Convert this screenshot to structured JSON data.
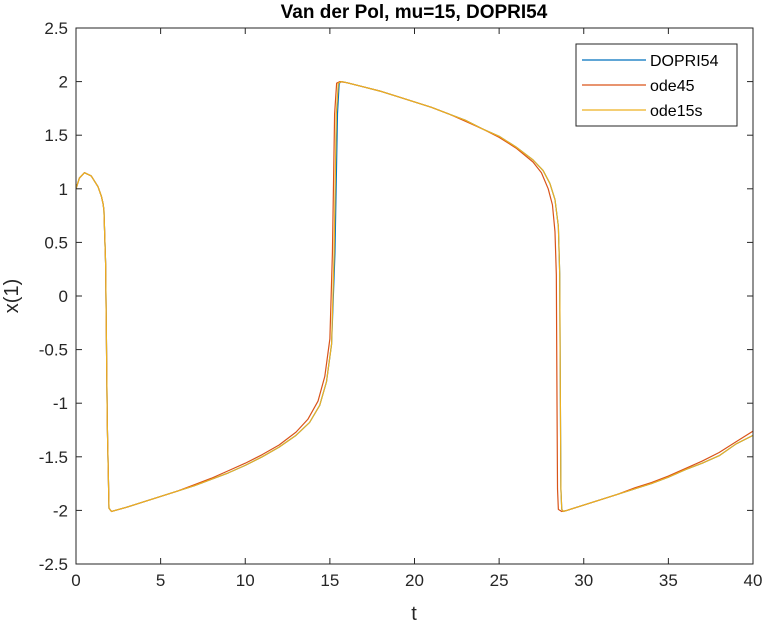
{
  "chart_data": {
    "type": "line",
    "title": "Van der Pol, mu=15, DOPRI54",
    "xlabel": "t",
    "ylabel": "x(1)",
    "xlim": [
      0,
      40
    ],
    "ylim": [
      -2.5,
      2.5
    ],
    "xticks": [
      0,
      5,
      10,
      15,
      20,
      25,
      30,
      35,
      40
    ],
    "yticks": [
      -2.5,
      -2,
      -1.5,
      -1,
      -0.5,
      0,
      0.5,
      1,
      1.5,
      2,
      2.5
    ],
    "grid": false,
    "legend_position": "top-right",
    "series": [
      {
        "name": "DOPRI54",
        "color": "#0072BD",
        "x": [
          0,
          0.2,
          0.5,
          0.9,
          1.3,
          1.5,
          1.6,
          1.65,
          1.75,
          1.85,
          1.95,
          2.1,
          3,
          4,
          5,
          6,
          7,
          8,
          9,
          10,
          11,
          12,
          13,
          13.8,
          14.4,
          14.8,
          15.1,
          15.3,
          15.45,
          15.55,
          15.7,
          16,
          17,
          18,
          19,
          20,
          21,
          22,
          23,
          24,
          25,
          26,
          27,
          27.6,
          28.0,
          28.3,
          28.5,
          28.58,
          28.62,
          28.65,
          28.7,
          28.8,
          29,
          30,
          31,
          32,
          33,
          34,
          35,
          36,
          37,
          38,
          39,
          40
        ],
        "y": [
          1.0,
          1.1,
          1.15,
          1.12,
          1.02,
          0.93,
          0.86,
          0.8,
          0.3,
          -1.2,
          -1.98,
          -2.01,
          -1.97,
          -1.92,
          -1.87,
          -1.82,
          -1.77,
          -1.71,
          -1.65,
          -1.58,
          -1.5,
          -1.41,
          -1.3,
          -1.18,
          -1.02,
          -0.8,
          -0.45,
          0.4,
          1.7,
          1.985,
          2.0,
          1.99,
          1.95,
          1.91,
          1.86,
          1.81,
          1.76,
          1.7,
          1.64,
          1.56,
          1.49,
          1.39,
          1.27,
          1.17,
          1.05,
          0.9,
          0.65,
          0.2,
          -1.0,
          -1.8,
          -1.99,
          -2.01,
          -2.0,
          -1.95,
          -1.9,
          -1.85,
          -1.8,
          -1.75,
          -1.69,
          -1.62,
          -1.56,
          -1.49,
          -1.38,
          -1.3
        ]
      },
      {
        "name": "ode45",
        "color": "#D95319",
        "x": [
          0,
          0.2,
          0.5,
          0.9,
          1.3,
          1.5,
          1.6,
          1.65,
          1.75,
          1.85,
          1.95,
          2.1,
          3,
          4,
          5,
          6,
          7,
          8,
          9,
          10,
          11,
          12,
          13,
          13.7,
          14.3,
          14.7,
          15.0,
          15.15,
          15.28,
          15.4,
          15.6,
          16,
          17,
          18,
          19,
          20,
          21,
          22,
          23,
          24,
          25,
          26,
          27,
          27.5,
          27.9,
          28.15,
          28.3,
          28.38,
          28.42,
          28.45,
          28.5,
          28.7,
          29,
          30,
          31,
          32,
          33,
          34,
          35,
          36,
          37,
          38,
          39,
          40
        ],
        "y": [
          1.0,
          1.1,
          1.15,
          1.12,
          1.02,
          0.93,
          0.86,
          0.8,
          0.3,
          -1.2,
          -1.98,
          -2.01,
          -1.97,
          -1.92,
          -1.87,
          -1.82,
          -1.76,
          -1.7,
          -1.63,
          -1.56,
          -1.48,
          -1.39,
          -1.27,
          -1.15,
          -0.98,
          -0.75,
          -0.4,
          0.4,
          1.7,
          1.985,
          2.0,
          1.99,
          1.95,
          1.91,
          1.86,
          1.81,
          1.76,
          1.7,
          1.63,
          1.56,
          1.48,
          1.38,
          1.25,
          1.15,
          1.0,
          0.85,
          0.6,
          0.2,
          -1.0,
          -1.8,
          -1.99,
          -2.01,
          -2.0,
          -1.95,
          -1.9,
          -1.85,
          -1.79,
          -1.74,
          -1.68,
          -1.61,
          -1.54,
          -1.46,
          -1.36,
          -1.26
        ]
      },
      {
        "name": "ode15s",
        "color": "#EDB120",
        "x": [
          0,
          0.2,
          0.5,
          0.9,
          1.3,
          1.5,
          1.6,
          1.65,
          1.75,
          1.85,
          1.95,
          2.1,
          3,
          4,
          5,
          6,
          7,
          8,
          9,
          10,
          11,
          12,
          13,
          13.8,
          14.4,
          14.8,
          15.1,
          15.25,
          15.38,
          15.5,
          15.7,
          16,
          17,
          18,
          19,
          20,
          21,
          22,
          23,
          24,
          25,
          26,
          27,
          27.6,
          28.0,
          28.3,
          28.5,
          28.58,
          28.62,
          28.65,
          28.7,
          28.8,
          29,
          30,
          31,
          32,
          33,
          34,
          35,
          36,
          37,
          38,
          39,
          40
        ],
        "y": [
          1.0,
          1.1,
          1.15,
          1.12,
          1.02,
          0.93,
          0.86,
          0.8,
          0.3,
          -1.2,
          -1.98,
          -2.01,
          -1.97,
          -1.92,
          -1.87,
          -1.82,
          -1.77,
          -1.71,
          -1.65,
          -1.58,
          -1.5,
          -1.41,
          -1.3,
          -1.18,
          -1.02,
          -0.8,
          -0.45,
          0.4,
          1.7,
          1.985,
          2.0,
          1.99,
          1.95,
          1.91,
          1.86,
          1.81,
          1.76,
          1.7,
          1.64,
          1.56,
          1.49,
          1.39,
          1.27,
          1.17,
          1.05,
          0.9,
          0.65,
          0.2,
          -1.0,
          -1.8,
          -1.99,
          -2.01,
          -2.0,
          -1.95,
          -1.9,
          -1.85,
          -1.8,
          -1.75,
          -1.69,
          -1.62,
          -1.56,
          -1.49,
          -1.38,
          -1.3
        ]
      }
    ]
  }
}
